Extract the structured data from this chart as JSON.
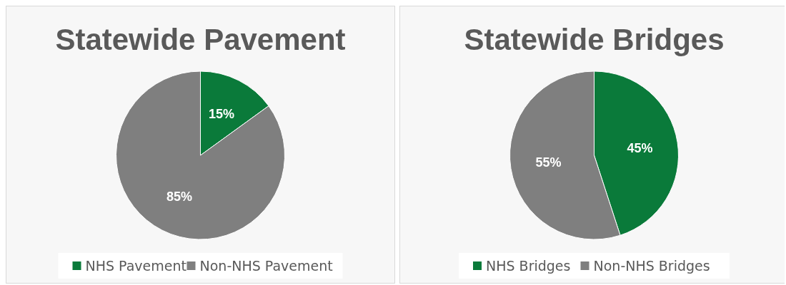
{
  "chart_data": [
    {
      "type": "pie",
      "title": "Statewide Pavement",
      "categories": [
        "NHS Pavement",
        "Non-NHS Pavement"
      ],
      "values": [
        15,
        85
      ],
      "colors": [
        "#0a7a3a",
        "#7f7f7f"
      ],
      "value_labels": [
        "15%",
        "85%"
      ],
      "legend": "bottom"
    },
    {
      "type": "pie",
      "title": "Statewide Bridges",
      "categories": [
        "NHS Bridges",
        "Non-NHS Bridges"
      ],
      "values": [
        45,
        55
      ],
      "colors": [
        "#0a7a3a",
        "#7f7f7f"
      ],
      "value_labels": [
        "45%",
        "55%"
      ],
      "legend": "bottom"
    }
  ]
}
